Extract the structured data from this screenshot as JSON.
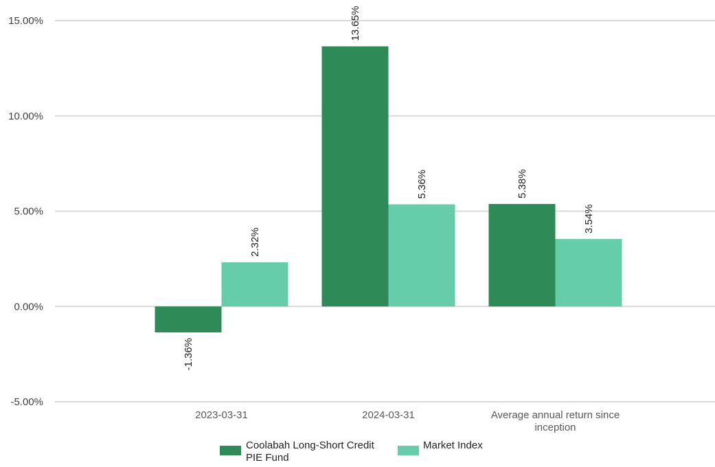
{
  "chart_data": {
    "type": "bar",
    "categories": [
      "2023-03-31",
      "2024-03-31",
      "Average annual return since inception"
    ],
    "category_label_lines": [
      [
        "2023-03-31"
      ],
      [
        "2024-03-31"
      ],
      [
        "Average annual return since",
        "inception"
      ]
    ],
    "series": [
      {
        "name": "Coolabah Long-Short Credit PIE Fund",
        "legend_lines": [
          "Coolabah Long-Short Credit",
          "PIE Fund"
        ],
        "values": [
          -1.36,
          13.65,
          5.38
        ],
        "labels": [
          "-1.36%",
          "13.65%",
          "5.38%"
        ],
        "color": "#2e8b57"
      },
      {
        "name": "Market Index",
        "legend_lines": [
          "Market Index"
        ],
        "values": [
          2.32,
          5.36,
          3.54
        ],
        "labels": [
          "2.32%",
          "5.36%",
          "3.54%"
        ],
        "color": "#66cdaa"
      }
    ],
    "y_ticks": [
      15,
      10,
      5,
      0,
      -5
    ],
    "y_tick_labels": [
      "15.00%",
      "10.00%",
      "5.00%",
      "0.00%",
      "-5.00%"
    ],
    "ylim": [
      -5,
      15
    ],
    "grid": true,
    "gridline_color": "#d9d9d9",
    "legend_position": "bottom-center",
    "title": "",
    "xlabel": "",
    "ylabel": ""
  }
}
